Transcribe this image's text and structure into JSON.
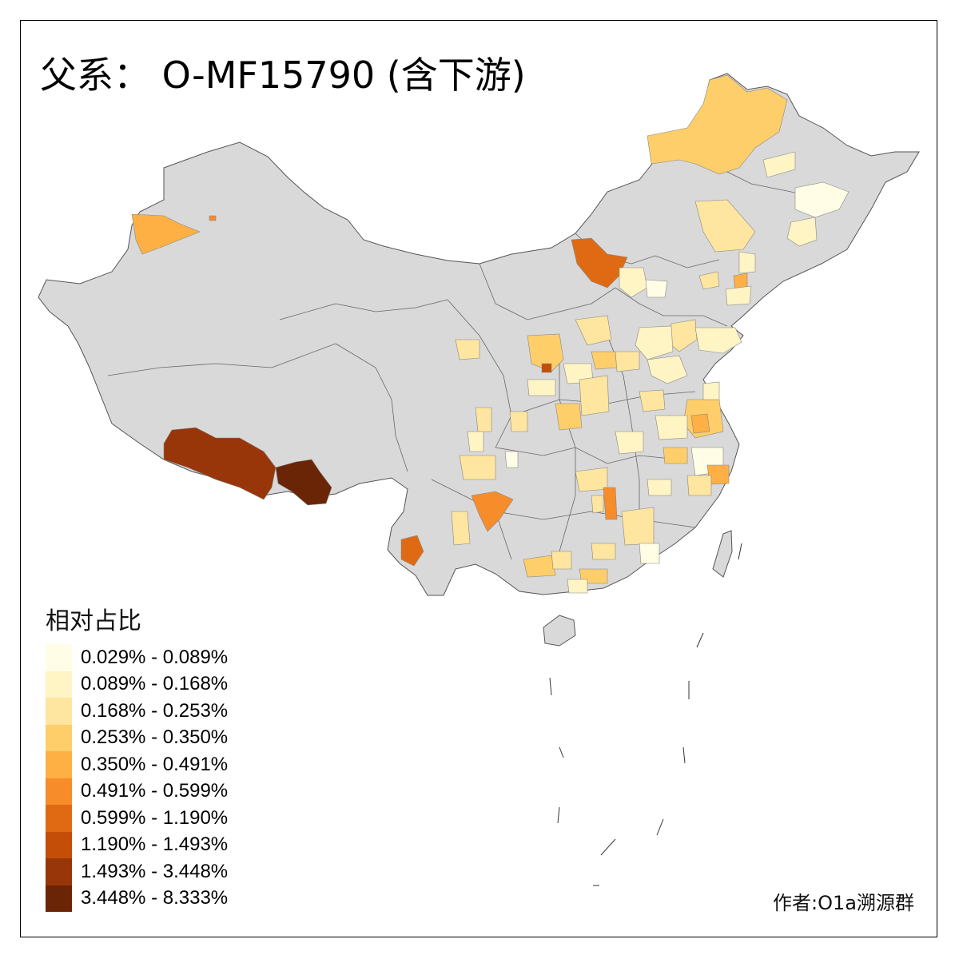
{
  "title": "父系： O-MF15790 (含下游)",
  "legend": {
    "title": "相对占比",
    "items": [
      {
        "label": "0.029% - 0.089%",
        "color": "#fffde6"
      },
      {
        "label": "0.089% - 0.168%",
        "color": "#fff4c4"
      },
      {
        "label": "0.168% - 0.253%",
        "color": "#fee5a0"
      },
      {
        "label": "0.253% - 0.350%",
        "color": "#fece6a"
      },
      {
        "label": "0.350% - 0.491%",
        "color": "#feb044"
      },
      {
        "label": "0.491% - 0.599%",
        "color": "#f68c2a"
      },
      {
        "label": "0.599% - 1.190%",
        "color": "#e06a14"
      },
      {
        "label": "1.190% - 1.493%",
        "color": "#c44e08"
      },
      {
        "label": "1.493% - 3.448%",
        "color": "#98360a"
      },
      {
        "label": "3.448% - 8.333%",
        "color": "#6a2507"
      }
    ]
  },
  "author": "作者:O1a溯源群",
  "colors": {
    "base_land": "#d9d9d9",
    "border": "#555555",
    "frame": "#000000",
    "background": "#ffffff"
  }
}
